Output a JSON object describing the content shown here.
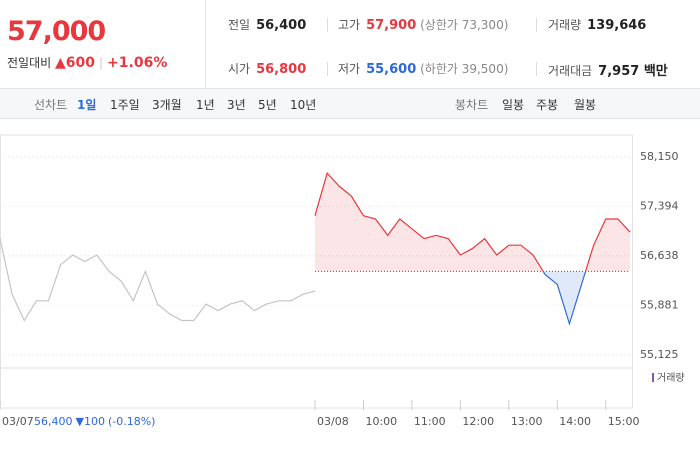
{
  "header": {
    "price": "57,000",
    "change_label": "전일대비",
    "change": "▲600",
    "change_rate": "+1.06%",
    "items": [
      {
        "label": "전일",
        "value": "56,400"
      },
      {
        "label": "고가",
        "value": "57,900",
        "note": "(상한가 73,300)"
      },
      {
        "label": "거래량",
        "value": "139,646"
      },
      {
        "label": "시가",
        "value": "56,800"
      },
      {
        "label": "저가",
        "value": "55,600",
        "note": "(하한가 39,500)"
      },
      {
        "label": "거래대금",
        "value": "7,957 백만"
      }
    ]
  },
  "tabs": {
    "line_label": "선차트",
    "line": [
      "1일",
      "1주일",
      "3개월",
      "1년",
      "3년",
      "5년",
      "10년"
    ],
    "candle_label": "봉차트",
    "candle": [
      "일봉",
      "주봉",
      "월봉"
    ]
  },
  "footer_info": {
    "price": "56,400",
    "change": "▼100",
    "rate": "(-0.18%)"
  },
  "chart_data": {
    "type": "line",
    "volume_label": "거래량",
    "baseline": 56400,
    "xlim": [
      0,
      13
    ],
    "xticks": [
      {
        "value": 0,
        "label": "03/07"
      },
      {
        "value": 6.5,
        "label": "03/08"
      },
      {
        "value": 7.5,
        "label": "10:00"
      },
      {
        "value": 8.5,
        "label": "11:00"
      },
      {
        "value": 9.5,
        "label": "12:00"
      },
      {
        "value": 10.5,
        "label": "13:00"
      },
      {
        "value": 11.5,
        "label": "14:00"
      },
      {
        "value": 12.5,
        "label": "15:00"
      }
    ],
    "ylim": [
      54970,
      58330
    ],
    "yticks": [
      {
        "value": 58150,
        "label": "58,150"
      },
      {
        "value": 57394,
        "label": "57,394"
      },
      {
        "value": 56638,
        "label": "56,638"
      },
      {
        "value": 55881,
        "label": "55,881"
      },
      {
        "value": 55125,
        "label": "55,125"
      }
    ],
    "grid": true,
    "series": [
      {
        "color": "#c4c4c4",
        "x": [
          0,
          0.25,
          0.5,
          0.75,
          1,
          1.25,
          1.5,
          1.75,
          2,
          2.25,
          2.5,
          2.75,
          3,
          3.25,
          3.5,
          3.75,
          4,
          4.25,
          4.5,
          4.75,
          5,
          5.25,
          5.5,
          5.75,
          6,
          6.25,
          6.5
        ],
        "values": [
          56900,
          56050,
          55650,
          55950,
          55950,
          56500,
          56650,
          56550,
          56650,
          56400,
          56250,
          55950,
          56400,
          55900,
          55750,
          55650,
          55650,
          55900,
          55800,
          55900,
          55950,
          55800,
          55900,
          55950,
          55950,
          56050,
          56100
        ]
      },
      {
        "color": "#e8383d",
        "down_color": "#2d6ad6",
        "x": [
          6.5,
          6.75,
          7,
          7.25,
          7.5,
          7.75,
          8,
          8.25,
          8.5,
          8.75,
          9,
          9.25,
          9.5,
          9.75,
          10,
          10.25,
          10.5,
          10.75,
          11,
          11.25,
          11.5,
          11.75,
          12,
          12.25,
          12.5,
          12.75,
          13
        ],
        "values": [
          57250,
          57900,
          57700,
          57550,
          57250,
          57200,
          56950,
          57200,
          57050,
          56900,
          56950,
          56900,
          56650,
          56750,
          56900,
          56650,
          56800,
          56800,
          56650,
          56350,
          56200,
          55600,
          56200,
          56800,
          57200,
          57200,
          57000
        ]
      }
    ]
  }
}
